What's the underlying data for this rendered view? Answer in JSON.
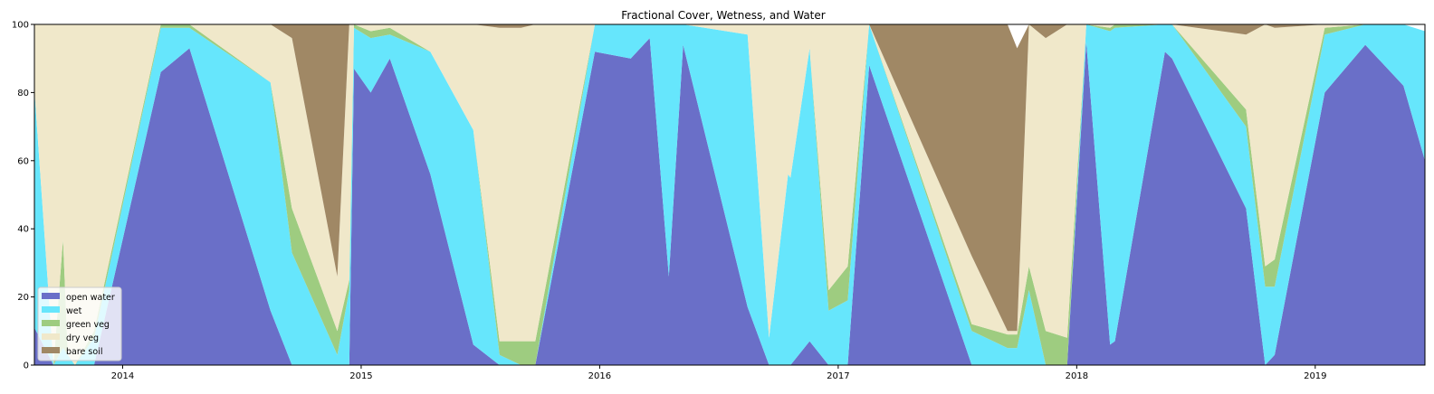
{
  "chart_data": {
    "type": "area",
    "stacked": true,
    "title": "Fractional Cover, Wetness, and Water",
    "xlabel": "",
    "ylabel": "",
    "xlim": [
      2013.63,
      2019.46
    ],
    "ylim": [
      0,
      100
    ],
    "x_ticks": [
      2014,
      2015,
      2016,
      2017,
      2018,
      2019
    ],
    "x_tick_labels": [
      "2014",
      "2015",
      "2016",
      "2017",
      "2018",
      "2019"
    ],
    "y_ticks": [
      0,
      20,
      40,
      60,
      80,
      100
    ],
    "y_tick_labels": [
      "0",
      "20",
      "40",
      "60",
      "80",
      "100"
    ],
    "legend_position": "lower-left",
    "grid": false,
    "x": [
      2013.63,
      2013.71,
      2013.75,
      2013.77,
      2013.8,
      2013.88,
      2014.16,
      2014.28,
      2014.62,
      2014.71,
      2014.9,
      2014.95,
      2014.97,
      2015.04,
      2015.12,
      2015.29,
      2015.47,
      2015.58,
      2015.67,
      2015.73,
      2015.98,
      2016.13,
      2016.21,
      2016.29,
      2016.35,
      2016.62,
      2016.71,
      2016.79,
      2016.8,
      2016.88,
      2016.96,
      2017.04,
      2017.13,
      2017.56,
      2017.71,
      2017.75,
      2017.8,
      2017.87,
      2017.96,
      2018.04,
      2018.14,
      2018.16,
      2018.37,
      2018.4,
      2018.71,
      2018.79,
      2018.83,
      2019.04,
      2019.21,
      2019.37,
      2019.46
    ],
    "series": [
      {
        "name": "open water",
        "color": "#6a6fc8",
        "values": [
          11,
          0,
          0,
          0,
          0,
          0,
          86,
          93,
          16,
          0,
          0,
          0,
          87,
          80,
          90,
          56,
          6,
          0,
          0,
          0,
          92,
          90,
          96,
          26,
          94,
          17,
          0,
          0,
          0,
          7,
          0,
          0,
          88,
          0,
          0,
          0,
          0,
          0,
          0,
          95,
          6,
          7,
          92,
          90,
          46,
          0,
          3,
          80,
          94,
          82,
          60
        ]
      },
      {
        "name": "wet",
        "color": "#66e6fc",
        "values": [
          70,
          0,
          5,
          3,
          0,
          8,
          13,
          6,
          67,
          33,
          3,
          22,
          12,
          16,
          7,
          36,
          63,
          3,
          0,
          0,
          8,
          10,
          4,
          74,
          6,
          80,
          8,
          56,
          55,
          86,
          16,
          19,
          12,
          10,
          5,
          5,
          22,
          0,
          0,
          5,
          92,
          92,
          8,
          10,
          24,
          23,
          20,
          17,
          6,
          18,
          38
        ]
      },
      {
        "name": "green veg",
        "color": "#9ecc80",
        "values": [
          0,
          0,
          32,
          0,
          0,
          2,
          1,
          1,
          0,
          13,
          7,
          3,
          1,
          2,
          2,
          0,
          0,
          4,
          7,
          7,
          0,
          0,
          0,
          0,
          0,
          0,
          0,
          0,
          0,
          0,
          6,
          10,
          0,
          2,
          4,
          4,
          7,
          10,
          8,
          0,
          1,
          1,
          0,
          0,
          5,
          6,
          8,
          2,
          0,
          0,
          0
        ]
      },
      {
        "name": "dry veg",
        "color": "#f0e8ca",
        "values": [
          19,
          100,
          63,
          97,
          100,
          90,
          0,
          0,
          17,
          50,
          16,
          75,
          0,
          2,
          1,
          8,
          31,
          92,
          92,
          93,
          0,
          0,
          0,
          0,
          0,
          3,
          92,
          44,
          45,
          7,
          78,
          71,
          0,
          20,
          1,
          1,
          71,
          86,
          92,
          0,
          1,
          0,
          0,
          0,
          22,
          71,
          68,
          1,
          0,
          0,
          0
        ]
      },
      {
        "name": "bare soil",
        "color": "#a08865",
        "values": [
          0,
          0,
          0,
          0,
          0,
          0,
          0,
          0,
          0,
          4,
          74,
          0,
          0,
          0,
          0,
          0,
          0,
          1,
          1,
          0,
          0,
          0,
          0,
          0,
          0,
          0,
          0,
          0,
          0,
          0,
          0,
          0,
          0,
          68,
          90,
          83,
          0,
          4,
          0,
          0,
          0,
          0,
          0,
          0,
          3,
          0,
          1,
          0,
          0,
          0,
          0
        ]
      }
    ]
  }
}
